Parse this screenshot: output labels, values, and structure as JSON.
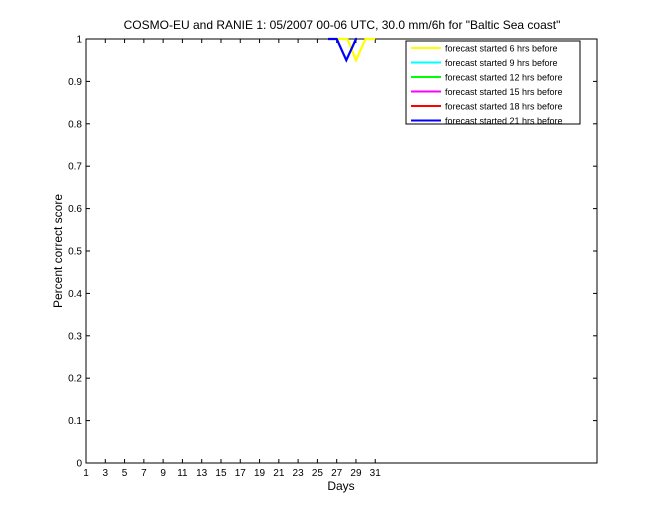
{
  "chart_data": {
    "type": "line",
    "title": "COSMO-EU and RANIE 1: 05/2007 00-06 UTC, 30.0 mm/6h for \"Baltic Sea coast\"",
    "xlabel": "Days",
    "ylabel": "Percent correct score",
    "xlim": [
      1,
      54
    ],
    "ylim": [
      0,
      1
    ],
    "x_ticks": [
      1,
      3,
      5,
      7,
      9,
      11,
      13,
      15,
      17,
      19,
      21,
      23,
      25,
      27,
      29,
      31
    ],
    "y_ticks": [
      0,
      0.1,
      0.2,
      0.3,
      0.4,
      0.5,
      0.6,
      0.7,
      0.8,
      0.9,
      1
    ],
    "grid": false,
    "legend_position": "top-right",
    "series": [
      {
        "name": "forecast started 6 hrs before",
        "color": "#ffff00",
        "x": [
          27.1,
          28.1,
          29,
          30,
          31
        ],
        "y": [
          1,
          1,
          0.95,
          1,
          1
        ]
      },
      {
        "name": "forecast started 9 hrs before",
        "color": "#00ffff",
        "x": [],
        "y": []
      },
      {
        "name": "forecast started 12 hrs before",
        "color": "#00ff00",
        "x": [],
        "y": []
      },
      {
        "name": "forecast started 15 hrs before",
        "color": "#ff00ff",
        "x": [],
        "y": []
      },
      {
        "name": "forecast started 18 hrs before",
        "color": "#ff0000",
        "x": [],
        "y": []
      },
      {
        "name": "forecast started 21 hrs before",
        "color": "#0000ff",
        "x": [
          26.1,
          27,
          28,
          29,
          29.1
        ],
        "y": [
          1,
          1,
          0.95,
          1,
          1
        ]
      }
    ]
  }
}
